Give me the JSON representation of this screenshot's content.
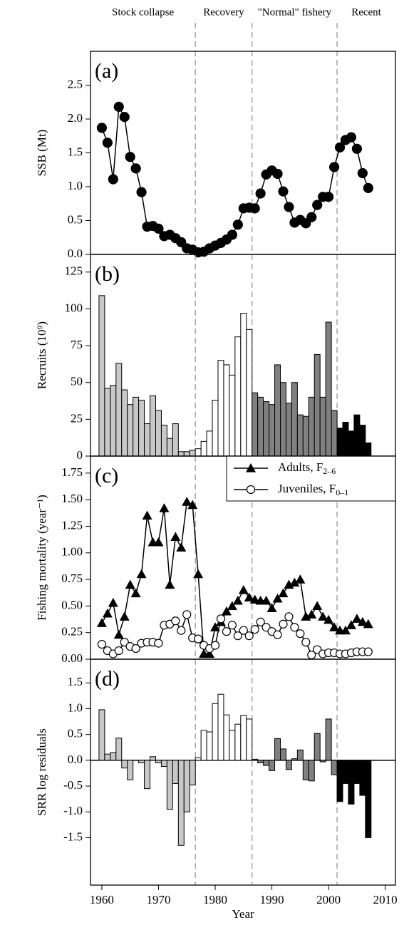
{
  "eras": [
    {
      "label": "Stock collapse",
      "color": "#c8c8c8"
    },
    {
      "label": "Recovery",
      "color": "#ffffff"
    },
    {
      "label": "\"Normal\" fishery",
      "color": "#808080"
    },
    {
      "label": "Recent",
      "color": "#000000"
    }
  ],
  "dividers": [
    1976.5,
    1986.5,
    2001.5
  ],
  "chart_data": [
    {
      "type": "line",
      "label": "(a)",
      "ylabel": "SSB (Mt)",
      "color": "#000000",
      "marker": "circle",
      "xlim": [
        1958,
        2011.8
      ],
      "x": [
        1960,
        1961,
        1962,
        1963,
        1964,
        1965,
        1966,
        1967,
        1968,
        1969,
        1970,
        1971,
        1972,
        1973,
        1974,
        1975,
        1976,
        1977,
        1978,
        1979,
        1980,
        1981,
        1982,
        1983,
        1984,
        1985,
        1986,
        1987,
        1988,
        1989,
        1990,
        1991,
        1992,
        1993,
        1994,
        1995,
        1996,
        1997,
        1998,
        1999,
        2000,
        2001,
        2002,
        2003,
        2004,
        2005,
        2006,
        2007
      ],
      "values": [
        1.87,
        1.65,
        1.11,
        2.18,
        2.03,
        1.44,
        1.27,
        0.92,
        0.41,
        0.42,
        0.38,
        0.27,
        0.29,
        0.24,
        0.18,
        0.09,
        0.07,
        0.03,
        0.04,
        0.09,
        0.13,
        0.17,
        0.22,
        0.29,
        0.44,
        0.68,
        0.69,
        0.68,
        0.9,
        1.18,
        1.24,
        1.19,
        0.93,
        0.7,
        0.47,
        0.51,
        0.46,
        0.55,
        0.73,
        0.85,
        0.85,
        1.29,
        1.58,
        1.69,
        1.73,
        1.56,
        1.2,
        0.98
      ],
      "ylim": [
        0,
        3.0
      ],
      "yticks": [
        {
          "value": 0,
          "label": "0.0"
        },
        {
          "value": 0.5,
          "label": "0.5"
        },
        {
          "value": 1,
          "label": "1.0"
        },
        {
          "value": 1.5,
          "label": "1.5"
        },
        {
          "value": 2,
          "label": "2.0"
        },
        {
          "value": 2.5,
          "label": "2.5"
        }
      ]
    },
    {
      "type": "bar",
      "label": "(b)",
      "ylabel": "Recruits (10⁹)",
      "xlim": [
        1958,
        2011.8
      ],
      "x": [
        1960,
        1961,
        1962,
        1963,
        1964,
        1965,
        1966,
        1967,
        1968,
        1969,
        1970,
        1971,
        1972,
        1973,
        1974,
        1975,
        1976,
        1977,
        1978,
        1979,
        1980,
        1981,
        1982,
        1983,
        1984,
        1985,
        1986,
        1987,
        1988,
        1989,
        1990,
        1991,
        1992,
        1993,
        1994,
        1995,
        1996,
        1997,
        1998,
        1999,
        2000,
        2001,
        2002,
        2003,
        2004,
        2005,
        2006,
        2007
      ],
      "values": [
        109,
        46,
        48,
        63,
        45,
        35,
        40,
        38,
        22,
        41,
        31,
        21,
        12,
        22,
        3,
        3,
        4,
        5,
        10,
        17,
        38,
        65,
        62,
        55,
        81,
        97,
        86,
        43,
        40,
        37,
        35,
        62,
        50,
        36,
        50,
        28,
        27,
        40,
        69,
        40,
        91,
        31,
        19,
        23,
        17,
        28,
        21,
        9
      ],
      "ylim": [
        0,
        137
      ],
      "yticks": [
        0,
        25,
        50,
        75,
        100,
        125
      ]
    },
    {
      "type": "line",
      "label": "(c)",
      "ylabel": "Fishing mortality (year⁻¹)",
      "xlim": [
        1958,
        2011.8
      ],
      "x": [
        1960,
        1961,
        1962,
        1963,
        1964,
        1965,
        1966,
        1967,
        1968,
        1969,
        1970,
        1971,
        1972,
        1973,
        1974,
        1975,
        1976,
        1977,
        1978,
        1979,
        1980,
        1981,
        1982,
        1983,
        1984,
        1985,
        1986,
        1987,
        1988,
        1989,
        1990,
        1991,
        1992,
        1993,
        1994,
        1995,
        1996,
        1997,
        1998,
        1999,
        2000,
        2001,
        2002,
        2003,
        2004,
        2005,
        2006,
        2007
      ],
      "series": [
        {
          "name": "Adults, F",
          "name_subscript": "2–6",
          "color": "#000000",
          "marker": "triangle",
          "values": [
            0.34,
            0.43,
            0.53,
            0.23,
            0.4,
            0.7,
            0.62,
            0.8,
            1.35,
            1.1,
            1.1,
            1.42,
            0.7,
            1.15,
            1.05,
            1.48,
            1.45,
            0.8,
            0.05,
            0.05,
            0.3,
            0.35,
            0.45,
            0.5,
            0.55,
            0.65,
            0.58,
            0.56,
            0.55,
            0.55,
            0.48,
            0.57,
            0.62,
            0.7,
            0.72,
            0.75,
            0.4,
            0.42,
            0.5,
            0.4,
            0.37,
            0.3,
            0.27,
            0.27,
            0.32,
            0.38,
            0.35,
            0.33
          ]
        },
        {
          "name": "Juveniles, F",
          "name_subscript": "0–1",
          "color": "#000000",
          "marker": "circle-open",
          "values": [
            0.14,
            0.08,
            0.05,
            0.08,
            0.16,
            0.12,
            0.1,
            0.15,
            0.16,
            0.16,
            0.15,
            0.32,
            0.33,
            0.36,
            0.27,
            0.42,
            0.2,
            0.19,
            0.13,
            0.1,
            0.13,
            0.38,
            0.26,
            0.32,
            0.22,
            0.27,
            0.22,
            0.28,
            0.35,
            0.3,
            0.26,
            0.23,
            0.33,
            0.4,
            0.3,
            0.24,
            0.16,
            0.04,
            0.09,
            0.05,
            0.06,
            0.06,
            0.05,
            0.05,
            0.06,
            0.07,
            0.07,
            0.07
          ]
        }
      ],
      "legend": "upper right",
      "ylim": [
        0,
        1.91
      ],
      "yticks": [
        {
          "value": 0,
          "label": "0.00"
        },
        {
          "value": 0.25,
          "label": "0.25"
        },
        {
          "value": 0.5,
          "label": "0.50"
        },
        {
          "value": 0.75,
          "label": "0.75"
        },
        {
          "value": 1,
          "label": "1.00"
        },
        {
          "value": 1.25,
          "label": "1.25"
        },
        {
          "value": 1.5,
          "label": "1.50"
        },
        {
          "value": 1.75,
          "label": "1.75"
        }
      ]
    },
    {
      "type": "bar",
      "label": "(d)",
      "ylabel": "SRR log residuals",
      "zero_line": true,
      "xlim": [
        1958,
        2011.8
      ],
      "x": [
        1960,
        1961,
        1962,
        1963,
        1964,
        1965,
        1966,
        1967,
        1968,
        1969,
        1970,
        1971,
        1972,
        1973,
        1974,
        1975,
        1976,
        1977,
        1978,
        1979,
        1980,
        1981,
        1982,
        1983,
        1984,
        1985,
        1986,
        1987,
        1988,
        1989,
        1990,
        1991,
        1992,
        1993,
        1994,
        1995,
        1996,
        1997,
        1998,
        1999,
        2000,
        2001,
        2002,
        2003,
        2004,
        2005,
        2006,
        2007
      ],
      "values": [
        0.98,
        0.12,
        0.15,
        0.43,
        -0.15,
        -0.38,
        0,
        -0.05,
        -0.55,
        0.07,
        -0.05,
        -0.12,
        -0.95,
        -0.45,
        -1.65,
        -1.0,
        -0.48,
        0.05,
        0.58,
        0.55,
        1.1,
        1.28,
        0.88,
        0.58,
        0.7,
        0.87,
        0.8,
        0.02,
        -0.05,
        -0.1,
        -0.2,
        0.42,
        0.22,
        -0.18,
        0.03,
        0.2,
        -0.38,
        -0.4,
        0.52,
        -0.03,
        0.8,
        -0.28,
        -0.8,
        -0.45,
        -0.85,
        -0.45,
        -0.68,
        -1.5
      ],
      "ylim": [
        -2.42,
        1.96
      ],
      "yticks": [
        {
          "value": -1.5,
          "label": "-1.5"
        },
        {
          "value": -1,
          "label": "-1.0"
        },
        {
          "value": -0.5,
          "label": "-0.5"
        },
        {
          "value": 0,
          "label": "0.0"
        },
        {
          "value": 0.5,
          "label": "0.5"
        },
        {
          "value": 1,
          "label": "1.0"
        },
        {
          "value": 1.5,
          "label": "1.5"
        }
      ],
      "xlabel": "Year",
      "xticks": [
        1960,
        1970,
        1980,
        1990,
        2000,
        2010
      ]
    }
  ]
}
